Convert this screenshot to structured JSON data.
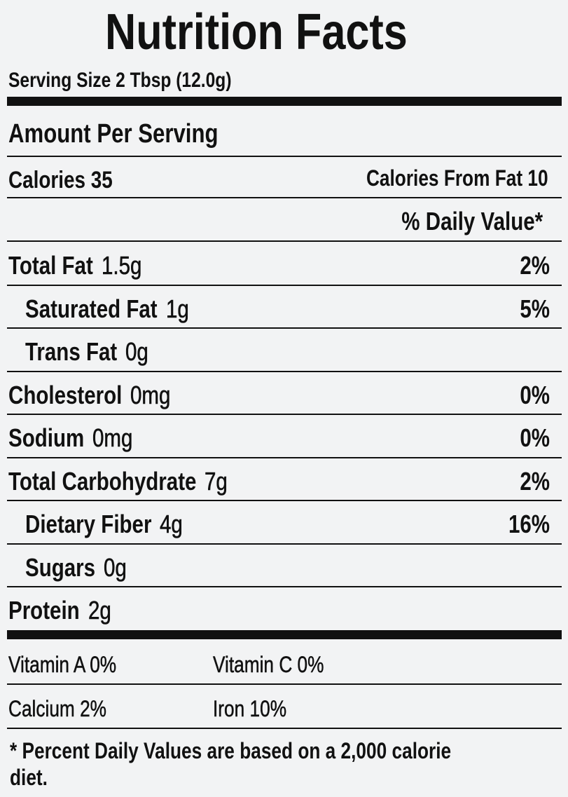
{
  "title": "Nutrition Facts",
  "serving_size": "Serving Size 2 Tbsp (12.0g)",
  "amount_per_serving": "Amount Per Serving",
  "calories": "Calories 35",
  "calories_from_fat": "Calories From Fat 10",
  "daily_value_header": "% Daily Value*",
  "nutrients": [
    {
      "name": "Total Fat",
      "amount": "1.5g",
      "dv": "2%"
    },
    {
      "name": "Saturated Fat",
      "amount": "1g",
      "dv": "5%",
      "indent": true
    },
    {
      "name": "Trans Fat",
      "amount": "0g",
      "indent": true
    },
    {
      "name": "Cholesterol",
      "amount": "0mg",
      "dv": "0%"
    },
    {
      "name": "Sodium",
      "amount": "0mg",
      "dv": "0%"
    },
    {
      "name": "Total Carbohydrate",
      "amount": "7g",
      "dv": "2%"
    },
    {
      "name": "Dietary Fiber",
      "amount": "4g",
      "dv": "16%",
      "indent": true
    },
    {
      "name": "Sugars",
      "amount": "0g",
      "indent": true
    },
    {
      "name": "Protein",
      "amount": "2g"
    }
  ],
  "vitamins": [
    [
      "Vitamin A 0%",
      "Vitamin C 0%"
    ],
    [
      "Calcium 2%",
      "Iron 10%"
    ]
  ],
  "footnote": "* Percent Daily Values are based on a 2,000 calorie diet."
}
